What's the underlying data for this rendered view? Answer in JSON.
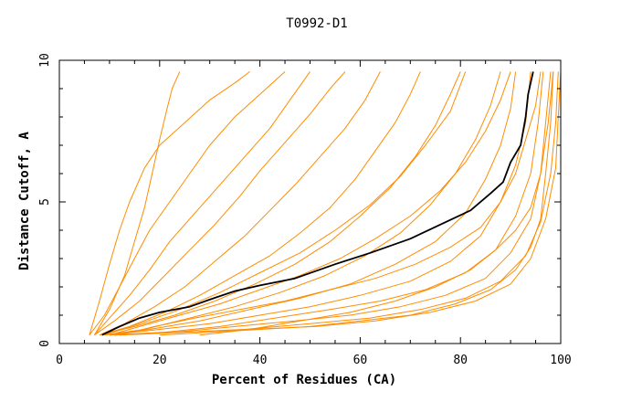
{
  "chart_data": {
    "type": "line",
    "title": "T0992-D1",
    "xlabel": "Percent of Residues (CA)",
    "ylabel": "Distance Cutoff, A",
    "xlim": [
      0,
      100
    ],
    "ylim": [
      0,
      10
    ],
    "x_ticks": [
      0,
      20,
      40,
      60,
      80,
      100
    ],
    "y_ticks": [
      0,
      5,
      10
    ],
    "grid": false,
    "colors": {
      "models": "#ff8c00",
      "highlight": "#000000",
      "axis": "#000000"
    },
    "series": [
      {
        "highlight": true,
        "points": [
          [
            8.5,
            0.3
          ],
          [
            12,
            0.6
          ],
          [
            16,
            0.9
          ],
          [
            20,
            1.1
          ],
          [
            26,
            1.3
          ],
          [
            30,
            1.55
          ],
          [
            35,
            1.85
          ],
          [
            40,
            2.05
          ],
          [
            47,
            2.3
          ],
          [
            55,
            2.8
          ],
          [
            62,
            3.2
          ],
          [
            70,
            3.7
          ],
          [
            76,
            4.2
          ],
          [
            82,
            4.7
          ],
          [
            86,
            5.3
          ],
          [
            88.5,
            5.7
          ],
          [
            90,
            6.4
          ],
          [
            92,
            7.0
          ],
          [
            93,
            8.0
          ],
          [
            93.5,
            8.8
          ],
          [
            94.5,
            9.6
          ]
        ]
      },
      {
        "highlight": false,
        "points": [
          [
            7,
            0.3
          ],
          [
            10,
            1.2
          ],
          [
            13,
            2.4
          ],
          [
            15,
            3.6
          ],
          [
            17,
            4.8
          ],
          [
            18.5,
            6.0
          ],
          [
            20,
            7.2
          ],
          [
            21.5,
            8.3
          ],
          [
            22.5,
            9.0
          ],
          [
            24,
            9.6
          ]
        ]
      },
      {
        "highlight": false,
        "points": [
          [
            6,
            0.3
          ],
          [
            8,
            1.5
          ],
          [
            10,
            2.8
          ],
          [
            12,
            4.0
          ],
          [
            14,
            5.0
          ],
          [
            17,
            6.2
          ],
          [
            20,
            7.0
          ],
          [
            25,
            7.8
          ],
          [
            30,
            8.6
          ],
          [
            35,
            9.2
          ],
          [
            38,
            9.6
          ]
        ]
      },
      {
        "highlight": false,
        "points": [
          [
            6,
            0.3
          ],
          [
            9,
            1.0
          ],
          [
            12,
            2.0
          ],
          [
            15,
            3.0
          ],
          [
            18,
            4.0
          ],
          [
            22,
            5.0
          ],
          [
            26,
            6.0
          ],
          [
            30,
            7.0
          ],
          [
            35,
            8.0
          ],
          [
            40,
            8.8
          ],
          [
            45,
            9.6
          ]
        ]
      },
      {
        "highlight": false,
        "points": [
          [
            7,
            0.3
          ],
          [
            10,
            0.9
          ],
          [
            14,
            1.7
          ],
          [
            18,
            2.6
          ],
          [
            22,
            3.6
          ],
          [
            27,
            4.6
          ],
          [
            32,
            5.6
          ],
          [
            37,
            6.6
          ],
          [
            42,
            7.6
          ],
          [
            46,
            8.6
          ],
          [
            50,
            9.6
          ]
        ]
      },
      {
        "highlight": false,
        "points": [
          [
            7,
            0.3
          ],
          [
            11,
            0.8
          ],
          [
            16,
            1.5
          ],
          [
            21,
            2.4
          ],
          [
            26,
            3.3
          ],
          [
            31,
            4.2
          ],
          [
            36,
            5.2
          ],
          [
            40,
            6.1
          ],
          [
            45,
            7.1
          ],
          [
            50,
            8.1
          ],
          [
            54,
            9.0
          ],
          [
            57,
            9.6
          ]
        ]
      },
      {
        "highlight": false,
        "points": [
          [
            8,
            0.3
          ],
          [
            13,
            0.7
          ],
          [
            19,
            1.3
          ],
          [
            25,
            2.0
          ],
          [
            31,
            2.9
          ],
          [
            37,
            3.8
          ],
          [
            42,
            4.7
          ],
          [
            47,
            5.6
          ],
          [
            52,
            6.6
          ],
          [
            57,
            7.6
          ],
          [
            61,
            8.6
          ],
          [
            64,
            9.6
          ]
        ]
      },
      {
        "highlight": false,
        "points": [
          [
            8,
            0.3
          ],
          [
            14,
            0.6
          ],
          [
            21,
            1.1
          ],
          [
            28,
            1.7
          ],
          [
            35,
            2.4
          ],
          [
            42,
            3.1
          ],
          [
            48,
            3.9
          ],
          [
            54,
            4.8
          ],
          [
            59,
            5.8
          ],
          [
            63,
            6.8
          ],
          [
            67,
            7.8
          ],
          [
            70,
            8.8
          ],
          [
            72,
            9.6
          ]
        ]
      },
      {
        "highlight": false,
        "points": [
          [
            8,
            0.3
          ],
          [
            15,
            0.6
          ],
          [
            23,
            1.0
          ],
          [
            31,
            1.5
          ],
          [
            39,
            2.1
          ],
          [
            47,
            2.8
          ],
          [
            54,
            3.6
          ],
          [
            60,
            4.5
          ],
          [
            66,
            5.5
          ],
          [
            71,
            6.6
          ],
          [
            75,
            7.7
          ],
          [
            78,
            8.8
          ],
          [
            80,
            9.6
          ]
        ]
      },
      {
        "highlight": false,
        "points": [
          [
            9,
            0.3
          ],
          [
            17,
            0.5
          ],
          [
            26,
            0.9
          ],
          [
            35,
            1.3
          ],
          [
            44,
            1.8
          ],
          [
            53,
            2.4
          ],
          [
            61,
            3.1
          ],
          [
            68,
            3.9
          ],
          [
            74,
            4.9
          ],
          [
            79,
            6.0
          ],
          [
            83,
            7.2
          ],
          [
            86,
            8.4
          ],
          [
            88,
            9.6
          ]
        ]
      },
      {
        "highlight": false,
        "points": [
          [
            9,
            0.3
          ],
          [
            18,
            0.5
          ],
          [
            28,
            0.8
          ],
          [
            38,
            1.2
          ],
          [
            48,
            1.6
          ],
          [
            58,
            2.1
          ],
          [
            67,
            2.8
          ],
          [
            75,
            3.6
          ],
          [
            81,
            4.6
          ],
          [
            85,
            5.8
          ],
          [
            88,
            7.0
          ],
          [
            90,
            8.3
          ],
          [
            91,
            9.6
          ]
        ]
      },
      {
        "highlight": false,
        "points": [
          [
            10,
            0.3
          ],
          [
            20,
            0.5
          ],
          [
            30,
            0.7
          ],
          [
            40,
            1.0
          ],
          [
            50,
            1.3
          ],
          [
            60,
            1.7
          ],
          [
            70,
            2.2
          ],
          [
            78,
            2.9
          ],
          [
            84,
            3.8
          ],
          [
            88,
            5.0
          ],
          [
            91,
            6.3
          ],
          [
            93,
            7.8
          ],
          [
            94,
            9.6
          ]
        ]
      },
      {
        "highlight": false,
        "points": [
          [
            10,
            0.3
          ],
          [
            21,
            0.4
          ],
          [
            32,
            0.6
          ],
          [
            43,
            0.9
          ],
          [
            54,
            1.2
          ],
          [
            64,
            1.5
          ],
          [
            73,
            1.9
          ],
          [
            81,
            2.5
          ],
          [
            87,
            3.3
          ],
          [
            91,
            4.5
          ],
          [
            94,
            6.0
          ],
          [
            95.5,
            7.8
          ],
          [
            96.5,
            9.6
          ]
        ]
      },
      {
        "highlight": false,
        "points": [
          [
            11,
            0.3
          ],
          [
            23,
            0.4
          ],
          [
            35,
            0.6
          ],
          [
            47,
            0.8
          ],
          [
            58,
            1.0
          ],
          [
            68,
            1.3
          ],
          [
            77,
            1.7
          ],
          [
            85,
            2.3
          ],
          [
            90,
            3.2
          ],
          [
            94,
            4.4
          ],
          [
            96,
            6.0
          ],
          [
            97,
            7.8
          ],
          [
            98,
            9.6
          ]
        ]
      },
      {
        "highlight": false,
        "points": [
          [
            11,
            0.3
          ],
          [
            24,
            0.4
          ],
          [
            37,
            0.5
          ],
          [
            50,
            0.7
          ],
          [
            62,
            0.9
          ],
          [
            72,
            1.2
          ],
          [
            81,
            1.6
          ],
          [
            88,
            2.2
          ],
          [
            93,
            3.1
          ],
          [
            96,
            4.3
          ],
          [
            98,
            6.0
          ],
          [
            99,
            7.8
          ],
          [
            99.5,
            9.6
          ]
        ]
      },
      {
        "highlight": false,
        "points": [
          [
            12,
            0.3
          ],
          [
            25,
            0.4
          ],
          [
            38,
            0.5
          ],
          [
            51,
            0.6
          ],
          [
            63,
            0.8
          ],
          [
            74,
            1.1
          ],
          [
            83,
            1.5
          ],
          [
            90,
            2.1
          ],
          [
            94,
            3.0
          ],
          [
            97,
            4.4
          ],
          [
            99,
            6.2
          ],
          [
            99.5,
            8.0
          ],
          [
            100,
            9.6
          ]
        ]
      },
      {
        "highlight": false,
        "points": [
          [
            20,
            0.3
          ],
          [
            30,
            0.4
          ],
          [
            40,
            0.5
          ],
          [
            50,
            0.6
          ],
          [
            60,
            0.8
          ],
          [
            70,
            1.0
          ],
          [
            79,
            1.4
          ],
          [
            86,
            1.9
          ],
          [
            91,
            2.6
          ],
          [
            94,
            3.4
          ],
          [
            96,
            4.4
          ],
          [
            97,
            6.0
          ],
          [
            98,
            7.8
          ],
          [
            98.5,
            9.6
          ]
        ]
      },
      {
        "highlight": false,
        "points": [
          [
            28,
            0.3
          ],
          [
            38,
            0.5
          ],
          [
            48,
            0.8
          ],
          [
            58,
            1.1
          ],
          [
            67,
            1.5
          ],
          [
            75,
            2.0
          ],
          [
            82,
            2.6
          ],
          [
            87,
            3.3
          ],
          [
            91,
            4.0
          ],
          [
            94,
            4.8
          ],
          [
            96,
            6.0
          ],
          [
            97.5,
            7.8
          ],
          [
            98.5,
            9.6
          ]
        ]
      },
      {
        "highlight": false,
        "points": [
          [
            10,
            0.3
          ],
          [
            16,
            0.6
          ],
          [
            24,
            1.0
          ],
          [
            32,
            1.4
          ],
          [
            40,
            1.9
          ],
          [
            48,
            2.4
          ],
          [
            56,
            3.0
          ],
          [
            63,
            3.7
          ],
          [
            70,
            4.5
          ],
          [
            76,
            5.4
          ],
          [
            81,
            6.4
          ],
          [
            85,
            7.5
          ],
          [
            88,
            8.6
          ],
          [
            90,
            9.6
          ]
        ]
      },
      {
        "highlight": false,
        "points": [
          [
            9,
            0.3
          ],
          [
            16,
            0.7
          ],
          [
            24,
            1.2
          ],
          [
            32,
            1.8
          ],
          [
            40,
            2.5
          ],
          [
            48,
            3.2
          ],
          [
            55,
            4.0
          ],
          [
            62,
            4.9
          ],
          [
            68,
            5.9
          ],
          [
            73,
            7.0
          ],
          [
            78,
            8.2
          ],
          [
            81,
            9.6
          ]
        ]
      },
      {
        "highlight": false,
        "points": [
          [
            12,
            0.3
          ],
          [
            19,
            0.6
          ],
          [
            27,
            0.9
          ],
          [
            36,
            1.2
          ],
          [
            45,
            1.5
          ],
          [
            54,
            1.9
          ],
          [
            63,
            2.3
          ],
          [
            71,
            2.8
          ],
          [
            78,
            3.4
          ],
          [
            84,
            4.1
          ],
          [
            88,
            5.0
          ],
          [
            91,
            6.0
          ],
          [
            93,
            7.2
          ],
          [
            95,
            8.4
          ],
          [
            96,
            9.6
          ]
        ]
      }
    ]
  }
}
